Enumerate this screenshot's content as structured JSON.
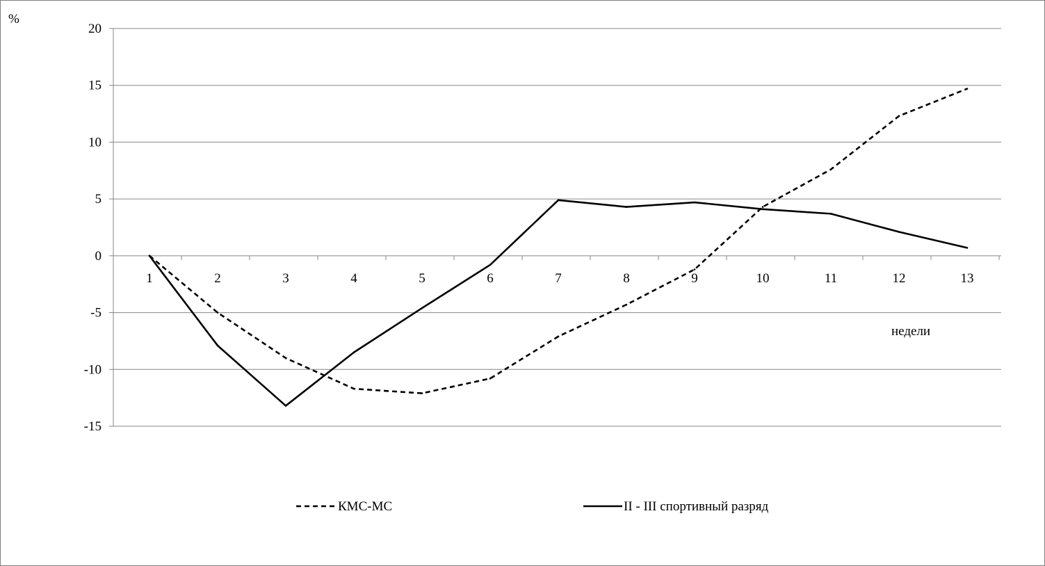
{
  "chart_data": {
    "type": "line",
    "title": "",
    "ylabel": "%",
    "xlabel": "недели",
    "ylim": [
      -15,
      20
    ],
    "yticks": [
      20,
      15,
      10,
      5,
      0,
      -5,
      -10,
      -15
    ],
    "categories": [
      "1",
      "2",
      "3",
      "4",
      "5",
      "6",
      "7",
      "8",
      "9",
      "10",
      "11",
      "12",
      "13"
    ],
    "grid": true,
    "legend_position": "bottom",
    "series": [
      {
        "name": "КМС-МС",
        "style": "dashed",
        "color": "#000000",
        "values": [
          0,
          -5,
          -9,
          -11.7,
          -12.1,
          -10.8,
          -7.1,
          -4.3,
          -1.2,
          4.3,
          7.6,
          12.3,
          14.7
        ]
      },
      {
        "name": "II - III спортивный разряд",
        "style": "solid",
        "color": "#000000",
        "values": [
          0,
          -7.9,
          -13.2,
          -8.5,
          -4.6,
          -0.8,
          4.9,
          4.3,
          4.7,
          4.1,
          3.7,
          2.1,
          0.7
        ]
      }
    ]
  }
}
